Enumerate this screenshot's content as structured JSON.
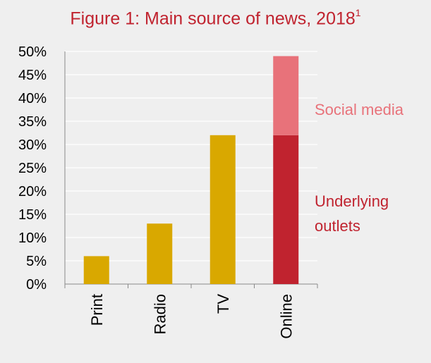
{
  "chart_data": {
    "type": "bar",
    "stacked": true,
    "title": "Figure 1: Main source of news, 2018",
    "title_superscript": "1",
    "categories": [
      "Print",
      "Radio",
      "TV",
      "Online"
    ],
    "series": [
      {
        "name": "Underlying outlets",
        "values": [
          6,
          13,
          32,
          32
        ],
        "colors": [
          "#d9a800",
          "#d9a800",
          "#d9a800",
          "#c0232f"
        ]
      },
      {
        "name": "Social media",
        "values": [
          0,
          0,
          0,
          17
        ],
        "colors": [
          "#e8727a",
          "#e8727a",
          "#e8727a",
          "#e8727a"
        ]
      }
    ],
    "ylim": [
      0,
      50
    ],
    "yticks": [
      "0%",
      "5%",
      "10%",
      "15%",
      "20%",
      "25%",
      "30%",
      "35%",
      "40%",
      "45%",
      "50%"
    ],
    "grid": true,
    "annotations": [
      {
        "text": "Social media",
        "color": "#e8727a"
      },
      {
        "text": "Underlying",
        "color": "#c0232f"
      },
      {
        "text": "outlets",
        "color": "#c0232f"
      }
    ]
  }
}
